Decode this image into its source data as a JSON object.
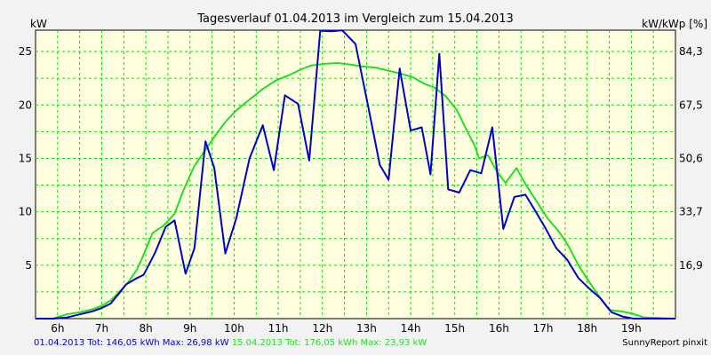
{
  "chart_data": {
    "type": "line",
    "title": "Tagesverlauf 01.04.2013 im Vergleich zum 15.04.2013",
    "left_axis_label": "kW",
    "right_axis_label": "kW/kWp [%]",
    "x_range": [
      5.5,
      20.0
    ],
    "y_range": [
      0,
      27
    ],
    "x_ticks": [
      {
        "x": 6,
        "label": "6h"
      },
      {
        "x": 7,
        "label": "7h"
      },
      {
        "x": 8,
        "label": "8h"
      },
      {
        "x": 9,
        "label": "9h"
      },
      {
        "x": 10,
        "label": "10h"
      },
      {
        "x": 11,
        "label": "11h"
      },
      {
        "x": 12,
        "label": "12h"
      },
      {
        "x": 13,
        "label": "13h"
      },
      {
        "x": 14,
        "label": "14h"
      },
      {
        "x": 15,
        "label": "15h"
      },
      {
        "x": 16,
        "label": "16h"
      },
      {
        "x": 17,
        "label": "17h"
      },
      {
        "x": 18,
        "label": "18h"
      },
      {
        "x": 19,
        "label": "19h"
      }
    ],
    "y_ticks_left": [
      {
        "y": 5,
        "label": "5"
      },
      {
        "y": 10,
        "label": "10"
      },
      {
        "y": 15,
        "label": "15"
      },
      {
        "y": 20,
        "label": "20"
      },
      {
        "y": 25,
        "label": "25"
      }
    ],
    "y_ticks_right": [
      {
        "y": 5,
        "label": "16,9"
      },
      {
        "y": 10,
        "label": "33,7"
      },
      {
        "y": 15,
        "label": "50,6"
      },
      {
        "y": 20,
        "label": "67,5"
      },
      {
        "y": 25,
        "label": "84,3"
      }
    ],
    "grid": true,
    "series": [
      {
        "name": "01.04.2013",
        "color": "#0000cc",
        "points": [
          [
            5.5,
            0
          ],
          [
            5.9,
            0
          ],
          [
            6.2,
            0.1
          ],
          [
            6.5,
            0.4
          ],
          [
            6.8,
            0.7
          ],
          [
            7.0,
            1.0
          ],
          [
            7.2,
            1.4
          ],
          [
            7.4,
            2.4
          ],
          [
            7.55,
            3.2
          ],
          [
            7.8,
            3.8
          ],
          [
            7.95,
            4.1
          ],
          [
            8.2,
            6.1
          ],
          [
            8.45,
            8.6
          ],
          [
            8.65,
            9.2
          ],
          [
            8.9,
            4.2
          ],
          [
            9.1,
            6.6
          ],
          [
            9.35,
            16.6
          ],
          [
            9.55,
            14.1
          ],
          [
            9.8,
            6.1
          ],
          [
            10.05,
            9.4
          ],
          [
            10.35,
            15.0
          ],
          [
            10.65,
            18.1
          ],
          [
            10.9,
            13.9
          ],
          [
            11.15,
            20.9
          ],
          [
            11.45,
            20.1
          ],
          [
            11.7,
            14.8
          ],
          [
            11.95,
            26.95
          ],
          [
            12.2,
            26.9
          ],
          [
            12.45,
            26.98
          ],
          [
            12.75,
            25.7
          ],
          [
            13.05,
            19.6
          ],
          [
            13.3,
            14.4
          ],
          [
            13.5,
            13.0
          ],
          [
            13.75,
            23.4
          ],
          [
            14.0,
            17.6
          ],
          [
            14.25,
            17.9
          ],
          [
            14.45,
            13.5
          ],
          [
            14.65,
            24.8
          ],
          [
            14.85,
            12.1
          ],
          [
            15.1,
            11.8
          ],
          [
            15.35,
            13.9
          ],
          [
            15.6,
            13.6
          ],
          [
            15.85,
            17.9
          ],
          [
            16.1,
            8.4
          ],
          [
            16.35,
            11.4
          ],
          [
            16.6,
            11.6
          ],
          [
            16.85,
            9.9
          ],
          [
            17.05,
            8.5
          ],
          [
            17.3,
            6.6
          ],
          [
            17.55,
            5.5
          ],
          [
            17.8,
            3.8
          ],
          [
            18.05,
            2.8
          ],
          [
            18.3,
            1.9
          ],
          [
            18.55,
            0.6
          ],
          [
            18.8,
            0.2
          ],
          [
            19.05,
            0
          ],
          [
            20.0,
            0
          ]
        ]
      },
      {
        "name": "15.04.2013",
        "color": "#22dd22",
        "points": [
          [
            5.5,
            0
          ],
          [
            5.9,
            0
          ],
          [
            6.2,
            0.4
          ],
          [
            6.5,
            0.6
          ],
          [
            6.8,
            0.9
          ],
          [
            7.0,
            1.2
          ],
          [
            7.2,
            1.7
          ],
          [
            7.4,
            2.5
          ],
          [
            7.6,
            3.4
          ],
          [
            7.8,
            4.6
          ],
          [
            7.95,
            6.0
          ],
          [
            8.15,
            8.0
          ],
          [
            8.4,
            8.7
          ],
          [
            8.65,
            9.8
          ],
          [
            8.85,
            12.0
          ],
          [
            9.1,
            14.3
          ],
          [
            9.35,
            15.8
          ],
          [
            9.55,
            17.0
          ],
          [
            9.8,
            18.4
          ],
          [
            10.05,
            19.5
          ],
          [
            10.35,
            20.5
          ],
          [
            10.65,
            21.5
          ],
          [
            10.95,
            22.3
          ],
          [
            11.25,
            22.8
          ],
          [
            11.5,
            23.3
          ],
          [
            11.75,
            23.7
          ],
          [
            12.05,
            23.85
          ],
          [
            12.35,
            23.93
          ],
          [
            12.6,
            23.8
          ],
          [
            12.9,
            23.6
          ],
          [
            13.2,
            23.5
          ],
          [
            13.5,
            23.2
          ],
          [
            13.8,
            22.9
          ],
          [
            14.05,
            22.6
          ],
          [
            14.3,
            22.0
          ],
          [
            14.55,
            21.6
          ],
          [
            14.8,
            20.8
          ],
          [
            15.05,
            19.5
          ],
          [
            15.25,
            17.8
          ],
          [
            15.45,
            16.2
          ],
          [
            15.55,
            15.0
          ],
          [
            15.75,
            15.3
          ],
          [
            15.95,
            13.8
          ],
          [
            16.15,
            12.7
          ],
          [
            16.4,
            14.1
          ],
          [
            16.6,
            12.6
          ],
          [
            16.85,
            11.0
          ],
          [
            17.1,
            9.4
          ],
          [
            17.35,
            8.2
          ],
          [
            17.55,
            7.0
          ],
          [
            17.8,
            5.0
          ],
          [
            18.05,
            3.4
          ],
          [
            18.3,
            1.9
          ],
          [
            18.5,
            0.8
          ],
          [
            18.75,
            0.7
          ],
          [
            19.0,
            0.5
          ],
          [
            19.3,
            0.1
          ],
          [
            20.0,
            0
          ]
        ]
      }
    ]
  },
  "legend": {
    "blue_label": "01.04.2013 Tot: 146,05 kWh Max: 26,98 kW",
    "green_label": "15.04.2013 Tot: 176,05 kWh Max: 23,93 kW"
  },
  "credit": "SunnyReport pinxit"
}
